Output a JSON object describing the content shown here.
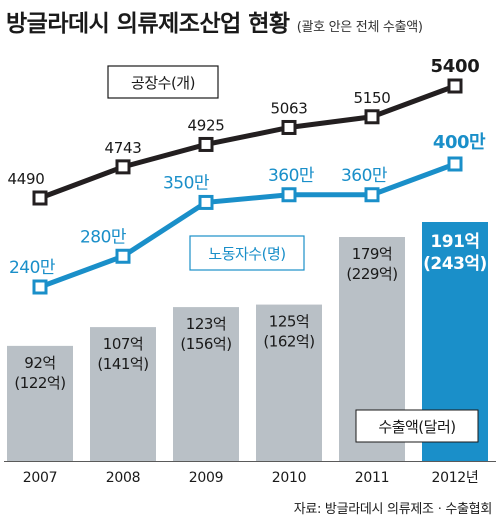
{
  "title": {
    "main": "방글라데시 의류제조산업 현황",
    "sub": "(괄호 안은 전체 수출액)"
  },
  "source": "자료: 방글라데시 의류제조ㆍ수출협회",
  "chart_data": {
    "type": "bar",
    "categories": [
      "2007",
      "2008",
      "2009",
      "2010",
      "2011",
      "2012년"
    ],
    "series": [
      {
        "name": "공장수(개)",
        "type": "line",
        "values": [
          4490,
          4743,
          4925,
          5063,
          5150,
          5400
        ],
        "labels": [
          "4490",
          "4743",
          "4925",
          "5063",
          "5150",
          "5400"
        ],
        "color": "#231f20"
      },
      {
        "name": "노동자수(명)",
        "type": "line",
        "values": [
          240,
          280,
          350,
          360,
          360,
          400
        ],
        "labels": [
          "240만",
          "280만",
          "350만",
          "360만",
          "360만",
          "400만"
        ],
        "color": "#1a8fc9"
      },
      {
        "name": "수출액(달러)",
        "type": "bar",
        "values": [
          92,
          107,
          123,
          125,
          179,
          191
        ],
        "labels": [
          "92억",
          "107억",
          "123억",
          "125억",
          "179억",
          "191억"
        ],
        "total_labels": [
          "(122억)",
          "(141억)",
          "(156억)",
          "(162억)",
          "(229억)",
          "(243억)"
        ],
        "colors": [
          "#b9c0c6",
          "#b9c0c6",
          "#b9c0c6",
          "#b9c0c6",
          "#b9c0c6",
          "#1a8fc9"
        ]
      }
    ],
    "legend_placement": "inline",
    "grid": false
  }
}
